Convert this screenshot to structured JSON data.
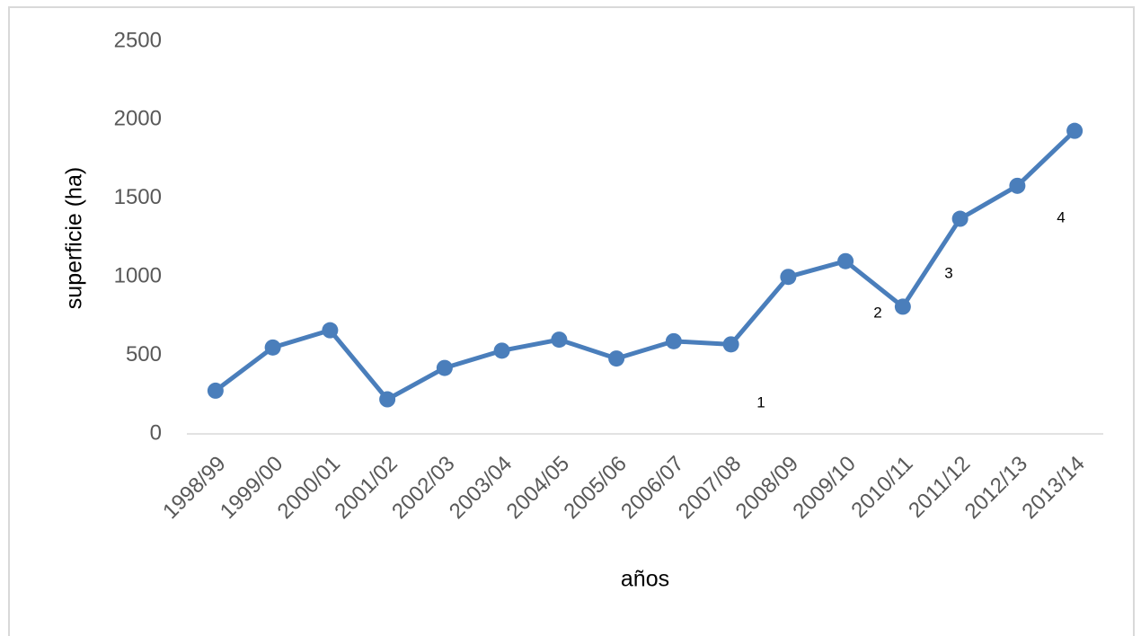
{
  "chart_data": {
    "type": "line",
    "categories": [
      "1998/99",
      "1999/00",
      "2000/01",
      "2001/02",
      "2002/03",
      "2003/04",
      "2004/05",
      "2005/06",
      "2006/07",
      "2007/08",
      "2008/09",
      "2009/10",
      "2010/11",
      "2011/12",
      "2012/13",
      "2013/14"
    ],
    "series": [
      {
        "name": "superficie",
        "color": "#4a7ebb",
        "values": [
          275,
          550,
          660,
          220,
          420,
          530,
          600,
          480,
          590,
          570,
          1000,
          1100,
          810,
          1370,
          1580,
          1930
        ]
      }
    ],
    "ylim": [
      0,
      2500
    ],
    "yticks": [
      0,
      500,
      1000,
      1500,
      2000,
      2500
    ],
    "xlabel": "años",
    "ylabel": "superficie (ha)",
    "annotations": [
      "1",
      "2",
      "3",
      "4"
    ],
    "legend": false,
    "grid": false
  }
}
